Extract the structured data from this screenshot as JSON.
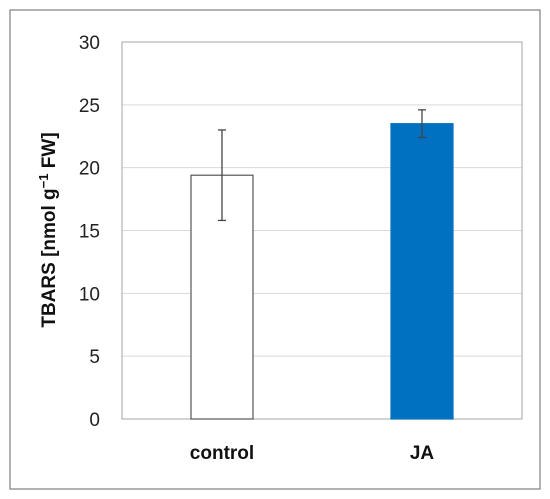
{
  "chart_data": {
    "type": "bar",
    "categories": [
      "control",
      "JA"
    ],
    "values": [
      19.4,
      23.5
    ],
    "error": [
      3.6,
      1.1
    ],
    "ylabel_main": "TBARS [nmol g",
    "ylabel_sup": "−1",
    "ylabel_tail": " FW]",
    "ylim": [
      0,
      30
    ],
    "yticks": [
      "0",
      "5",
      "10",
      "15",
      "20",
      "25",
      "30"
    ],
    "ytick_values": [
      0,
      5,
      10,
      15,
      20,
      25,
      30
    ],
    "grid": true,
    "colors": {
      "bar_fills": [
        "#ffffff",
        "#0070c0"
      ],
      "bar_strokes": [
        "#555555",
        "#0070c0"
      ],
      "grid": "#d9d9d9",
      "error": "#444444",
      "frame": "#7f7f7f"
    }
  }
}
